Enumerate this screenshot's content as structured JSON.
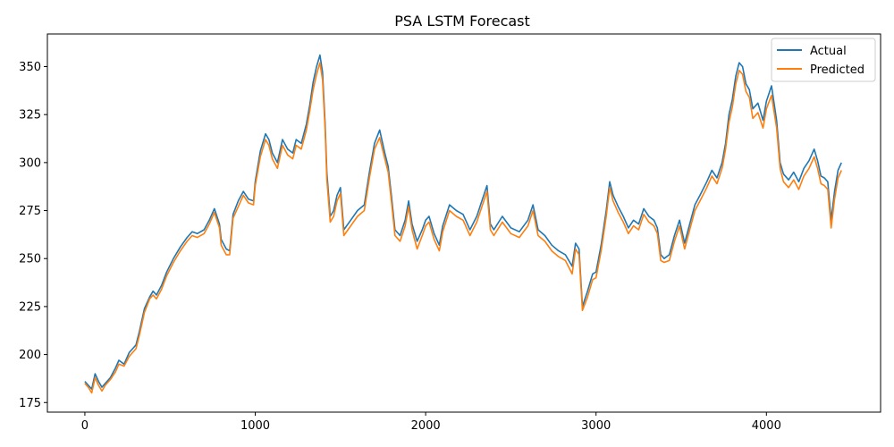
{
  "chart_data": {
    "type": "line",
    "title": "PSA LSTM Forecast",
    "xlabel": "",
    "ylabel": "",
    "xlim": [
      -220,
      4670
    ],
    "ylim": [
      170,
      367
    ],
    "xticks": [
      0,
      1000,
      2000,
      3000,
      4000
    ],
    "yticks": [
      175,
      200,
      225,
      250,
      275,
      300,
      325,
      350
    ],
    "grid": false,
    "legend_position": "top-right",
    "series": [
      {
        "name": "Actual",
        "color": "#1f77b4",
        "x": [
          0,
          20,
          40,
          60,
          80,
          100,
          120,
          150,
          180,
          200,
          230,
          260,
          280,
          300,
          320,
          350,
          380,
          400,
          420,
          450,
          480,
          520,
          560,
          600,
          630,
          660,
          700,
          730,
          760,
          790,
          800,
          830,
          850,
          870,
          900,
          930,
          960,
          990,
          1000,
          1030,
          1060,
          1080,
          1100,
          1130,
          1160,
          1190,
          1220,
          1240,
          1270,
          1300,
          1320,
          1340,
          1360,
          1380,
          1395,
          1410,
          1420,
          1440,
          1460,
          1480,
          1500,
          1520,
          1560,
          1600,
          1640,
          1670,
          1700,
          1730,
          1760,
          1780,
          1800,
          1820,
          1850,
          1880,
          1900,
          1920,
          1950,
          1980,
          2000,
          2020,
          2050,
          2080,
          2100,
          2140,
          2180,
          2220,
          2260,
          2300,
          2330,
          2360,
          2380,
          2400,
          2450,
          2500,
          2550,
          2600,
          2630,
          2660,
          2700,
          2740,
          2780,
          2820,
          2860,
          2880,
          2900,
          2920,
          2950,
          2980,
          3000,
          3030,
          3060,
          3080,
          3100,
          3130,
          3160,
          3190,
          3220,
          3250,
          3280,
          3310,
          3340,
          3360,
          3380,
          3400,
          3430,
          3460,
          3490,
          3520,
          3550,
          3580,
          3610,
          3650,
          3680,
          3710,
          3740,
          3760,
          3780,
          3800,
          3820,
          3840,
          3860,
          3880,
          3900,
          3920,
          3950,
          3980,
          4000,
          4030,
          4060,
          4080,
          4100,
          4130,
          4160,
          4190,
          4220,
          4250,
          4280,
          4300,
          4320,
          4340,
          4360,
          4380,
          4400,
          4420,
          4440
        ],
        "values": [
          186,
          184,
          182,
          190,
          186,
          183,
          185,
          188,
          193,
          197,
          195,
          201,
          203,
          205,
          212,
          224,
          230,
          233,
          231,
          236,
          243,
          250,
          256,
          261,
          264,
          263,
          265,
          270,
          276,
          268,
          260,
          255,
          254,
          273,
          280,
          285,
          281,
          280,
          290,
          306,
          315,
          312,
          305,
          300,
          312,
          307,
          305,
          312,
          310,
          320,
          330,
          342,
          350,
          356,
          347,
          320,
          295,
          272,
          275,
          283,
          287,
          265,
          270,
          275,
          278,
          295,
          310,
          317,
          305,
          298,
          282,
          265,
          262,
          270,
          280,
          268,
          259,
          265,
          270,
          272,
          263,
          257,
          267,
          278,
          275,
          273,
          265,
          272,
          280,
          288,
          268,
          265,
          272,
          266,
          264,
          270,
          278,
          265,
          262,
          257,
          254,
          252,
          246,
          258,
          255,
          225,
          233,
          242,
          243,
          257,
          275,
          290,
          283,
          277,
          272,
          266,
          270,
          268,
          276,
          272,
          270,
          266,
          252,
          250,
          252,
          262,
          270,
          258,
          268,
          278,
          283,
          290,
          296,
          292,
          300,
          310,
          325,
          333,
          345,
          352,
          350,
          341,
          338,
          328,
          331,
          322,
          332,
          340,
          322,
          300,
          294,
          291,
          295,
          290,
          297,
          301,
          307,
          301,
          293,
          292,
          290,
          270,
          285,
          296,
          300
        ]
      },
      {
        "name": "Predicted",
        "color": "#ff7f0e",
        "x": [
          0,
          20,
          40,
          60,
          80,
          100,
          120,
          150,
          180,
          200,
          230,
          260,
          280,
          300,
          320,
          350,
          380,
          400,
          420,
          450,
          480,
          520,
          560,
          600,
          630,
          660,
          700,
          730,
          760,
          790,
          800,
          830,
          850,
          870,
          900,
          930,
          960,
          990,
          1000,
          1030,
          1060,
          1080,
          1100,
          1130,
          1160,
          1190,
          1220,
          1240,
          1270,
          1300,
          1320,
          1340,
          1360,
          1380,
          1395,
          1410,
          1420,
          1440,
          1460,
          1480,
          1500,
          1520,
          1560,
          1600,
          1640,
          1670,
          1700,
          1730,
          1760,
          1780,
          1800,
          1820,
          1850,
          1880,
          1900,
          1920,
          1950,
          1980,
          2000,
          2020,
          2050,
          2080,
          2100,
          2140,
          2180,
          2220,
          2260,
          2300,
          2330,
          2360,
          2380,
          2400,
          2450,
          2500,
          2550,
          2600,
          2630,
          2660,
          2700,
          2740,
          2780,
          2820,
          2860,
          2880,
          2900,
          2920,
          2950,
          2980,
          3000,
          3030,
          3060,
          3080,
          3100,
          3130,
          3160,
          3190,
          3220,
          3250,
          3280,
          3310,
          3340,
          3360,
          3380,
          3400,
          3430,
          3460,
          3490,
          3520,
          3550,
          3580,
          3610,
          3650,
          3680,
          3710,
          3740,
          3760,
          3780,
          3800,
          3820,
          3840,
          3860,
          3880,
          3900,
          3920,
          3950,
          3980,
          4000,
          4030,
          4060,
          4080,
          4100,
          4130,
          4160,
          4190,
          4220,
          4250,
          4280,
          4300,
          4320,
          4340,
          4360,
          4380,
          4400,
          4420,
          4440
        ],
        "values": [
          185,
          183,
          180,
          188,
          184,
          181,
          184,
          187,
          191,
          195,
          194,
          199,
          201,
          203,
          210,
          222,
          229,
          231,
          229,
          234,
          241,
          248,
          254,
          259,
          262,
          261,
          263,
          268,
          274,
          266,
          257,
          252,
          252,
          271,
          277,
          283,
          279,
          278,
          288,
          303,
          312,
          309,
          302,
          297,
          309,
          304,
          302,
          309,
          307,
          317,
          327,
          338,
          346,
          352,
          343,
          317,
          291,
          269,
          272,
          280,
          284,
          262,
          267,
          272,
          275,
          292,
          307,
          313,
          302,
          295,
          279,
          262,
          259,
          267,
          277,
          265,
          255,
          262,
          267,
          269,
          260,
          254,
          264,
          275,
          272,
          270,
          262,
          269,
          277,
          285,
          265,
          262,
          269,
          263,
          261,
          267,
          275,
          262,
          259,
          254,
          251,
          249,
          242,
          255,
          252,
          223,
          230,
          239,
          240,
          254,
          272,
          287,
          280,
          274,
          269,
          263,
          267,
          265,
          273,
          269,
          267,
          263,
          249,
          248,
          249,
          259,
          267,
          255,
          265,
          275,
          280,
          287,
          293,
          289,
          297,
          307,
          321,
          329,
          341,
          348,
          346,
          337,
          334,
          323,
          326,
          318,
          328,
          335,
          318,
          297,
          290,
          287,
          291,
          286,
          293,
          297,
          303,
          297,
          289,
          288,
          286,
          266,
          281,
          292,
          296
        ]
      }
    ]
  }
}
